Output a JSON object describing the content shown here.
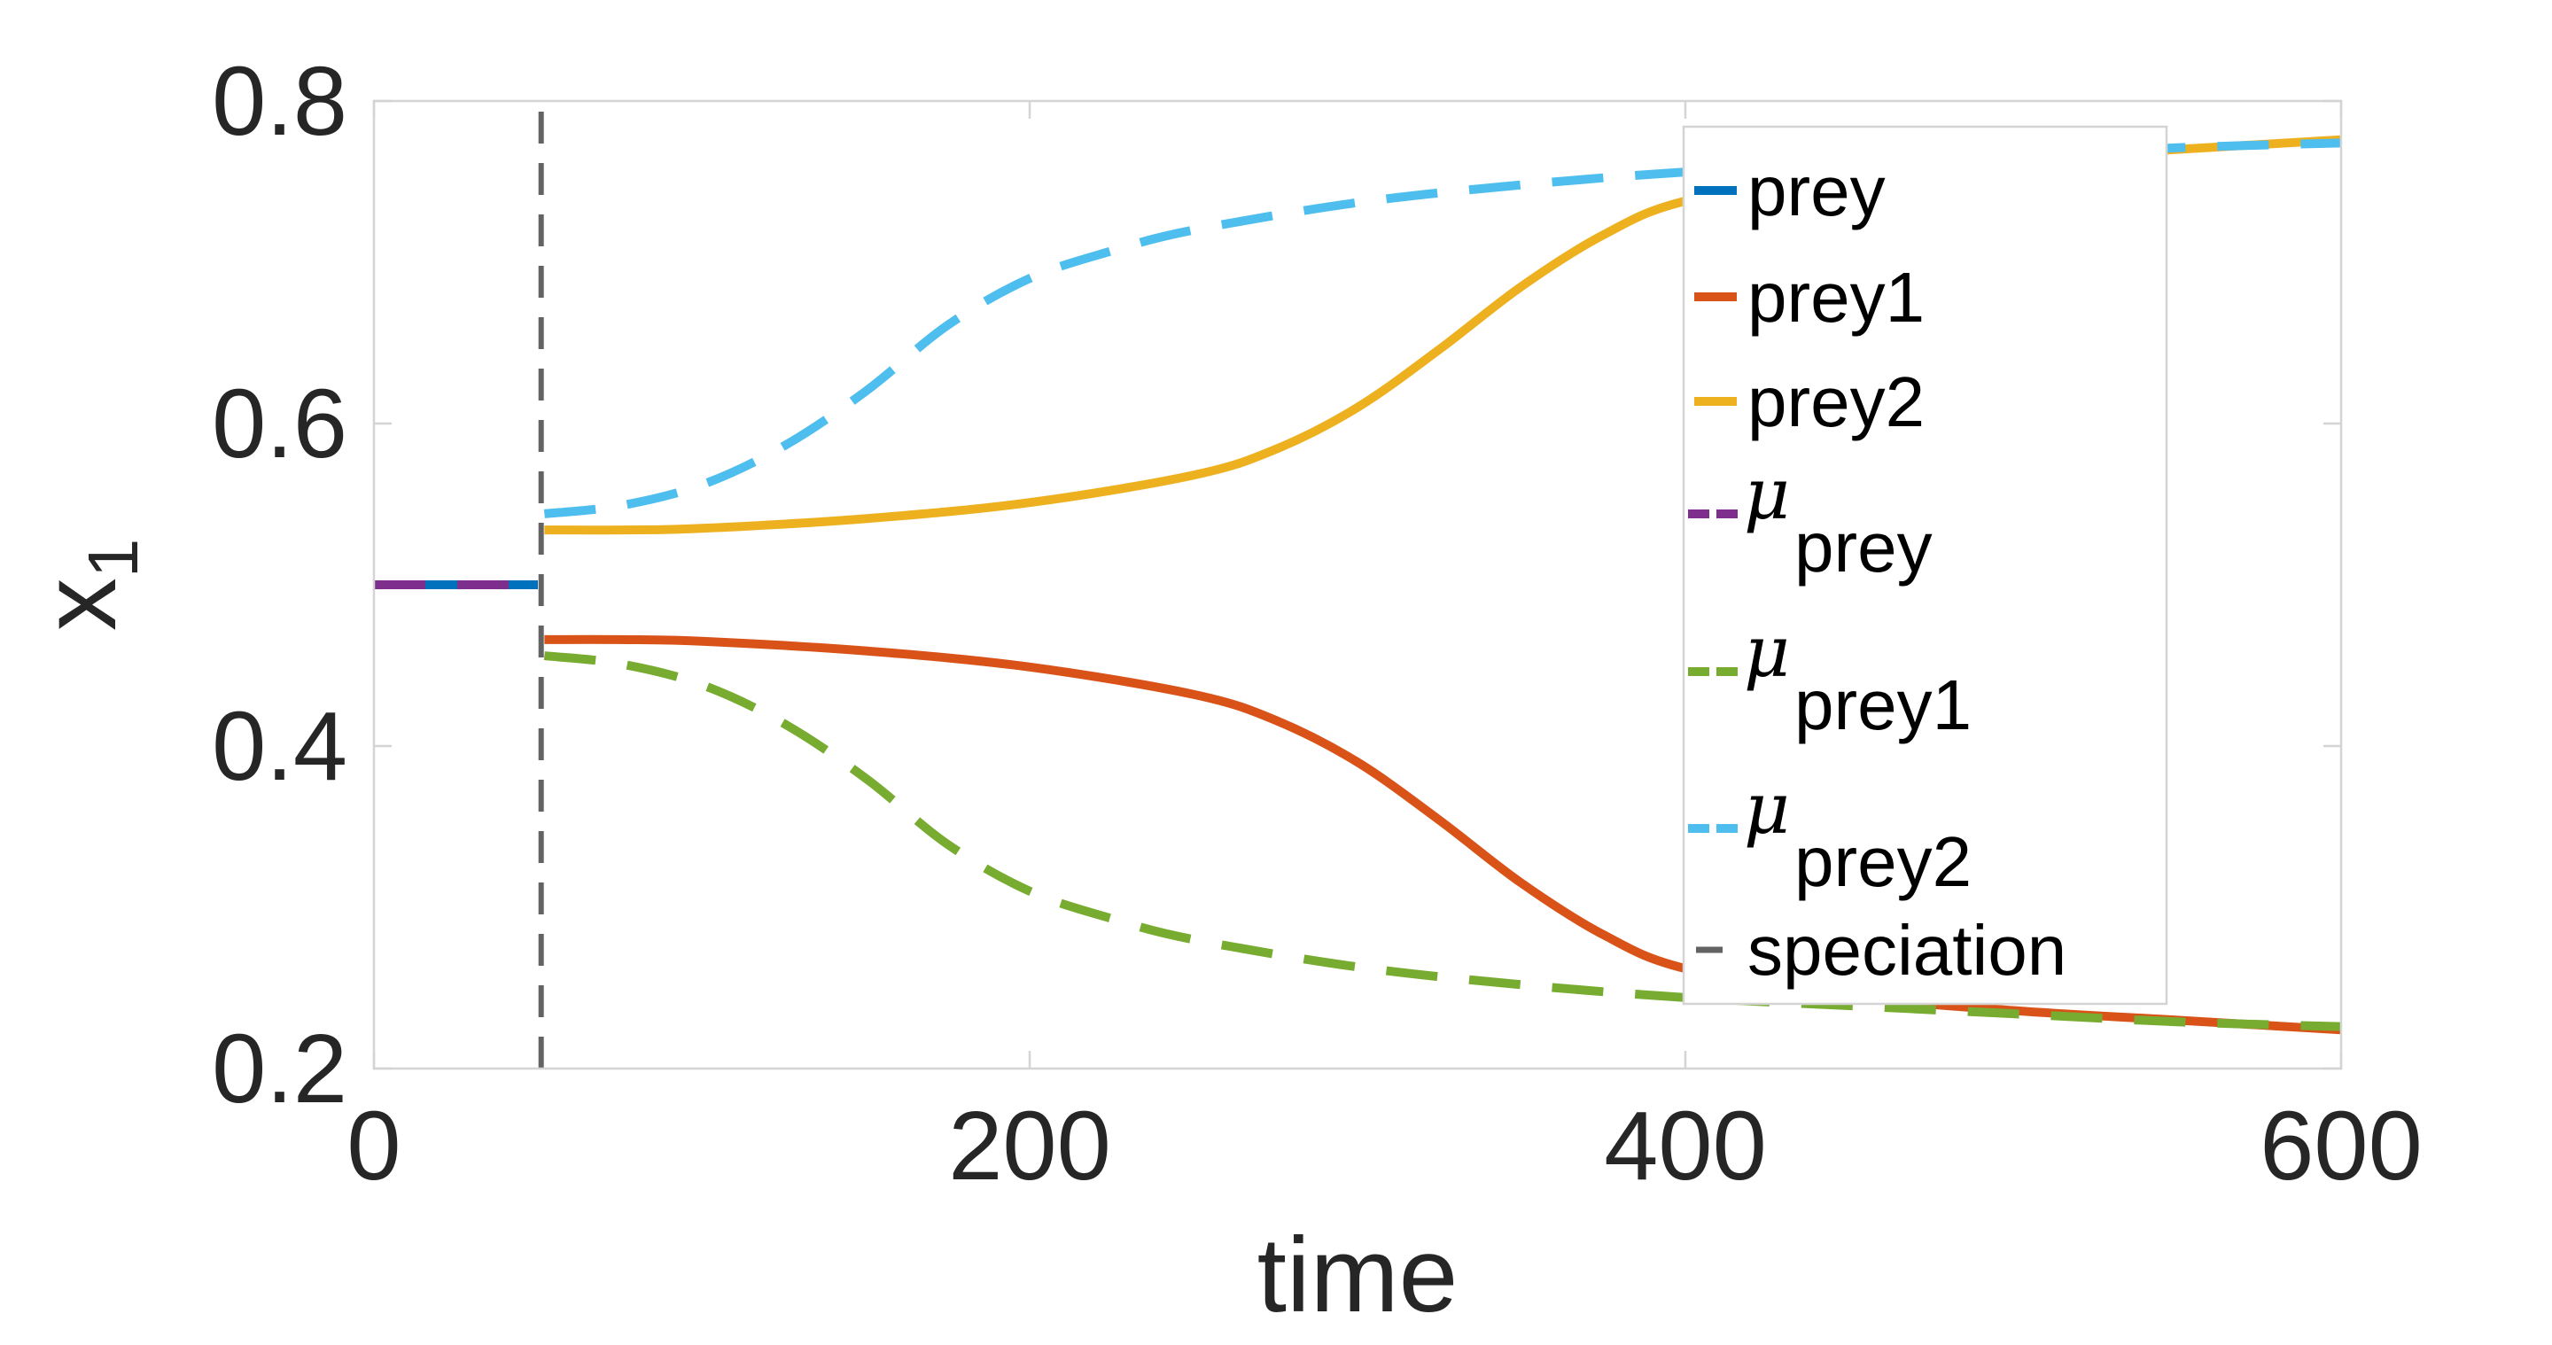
{
  "chart_data": {
    "type": "line",
    "xlabel": "time",
    "ylabel": "x",
    "ylabel_subscript": "1",
    "xlim": [
      0,
      600
    ],
    "ylim": [
      0.2,
      0.8
    ],
    "xticks": [
      "0",
      "200",
      "400",
      "600"
    ],
    "yticks": [
      "0.2",
      "0.4",
      "0.6",
      "0.8"
    ],
    "xtick_values": [
      0,
      200,
      400,
      600
    ],
    "ytick_values": [
      0.2,
      0.4,
      0.6,
      0.8
    ],
    "grid": false,
    "legend_position": "top-right",
    "series": [
      {
        "name": "prey",
        "color": "#0072BD",
        "style": "solid",
        "x": [
          0,
          50
        ],
        "y": [
          0.5,
          0.5
        ]
      },
      {
        "name": "prey1",
        "color": "#D95319",
        "style": "solid",
        "x": [
          52,
          75,
          100,
          150,
          200,
          250,
          275,
          300,
          325,
          350,
          375,
          400,
          450,
          500,
          550,
          600
        ],
        "y": [
          0.466,
          0.466,
          0.465,
          0.459,
          0.449,
          0.432,
          0.416,
          0.39,
          0.354,
          0.315,
          0.283,
          0.262,
          0.245,
          0.236,
          0.23,
          0.224
        ]
      },
      {
        "name": "prey2",
        "color": "#EDB120",
        "style": "solid",
        "x": [
          52,
          75,
          100,
          150,
          200,
          250,
          275,
          300,
          325,
          350,
          375,
          400,
          450,
          500,
          550,
          600
        ],
        "y": [
          0.534,
          0.534,
          0.535,
          0.541,
          0.551,
          0.568,
          0.584,
          0.61,
          0.646,
          0.685,
          0.717,
          0.738,
          0.755,
          0.764,
          0.77,
          0.776
        ]
      },
      {
        "name": "μ_prey",
        "label": "μ",
        "subscript": "prey",
        "color": "#7E2F8E",
        "style": "dashed",
        "x": [
          0,
          50
        ],
        "y": [
          0.5,
          0.5
        ]
      },
      {
        "name": "μ_prey1",
        "label": "μ",
        "subscript": "prey1",
        "color": "#77AC30",
        "style": "dashed",
        "x": [
          52,
          75,
          100,
          125,
          150,
          175,
          200,
          225,
          250,
          300,
          350,
          400,
          450,
          500,
          550,
          600
        ],
        "y": [
          0.456,
          0.451,
          0.438,
          0.414,
          0.38,
          0.339,
          0.31,
          0.293,
          0.28,
          0.263,
          0.252,
          0.244,
          0.239,
          0.234,
          0.229,
          0.226
        ]
      },
      {
        "name": "μ_prey2",
        "label": "μ",
        "subscript": "prey2",
        "color": "#4DBEEE",
        "style": "dashed",
        "x": [
          52,
          75,
          100,
          125,
          150,
          175,
          200,
          225,
          250,
          300,
          350,
          400,
          450,
          500,
          550,
          600
        ],
        "y": [
          0.544,
          0.549,
          0.562,
          0.586,
          0.62,
          0.661,
          0.69,
          0.707,
          0.72,
          0.737,
          0.748,
          0.756,
          0.761,
          0.766,
          0.771,
          0.774
        ]
      },
      {
        "name": "speciation",
        "color": "#636363",
        "style": "dashed",
        "x": [
          51,
          51
        ],
        "y": [
          0.2,
          0.8
        ]
      }
    ]
  }
}
